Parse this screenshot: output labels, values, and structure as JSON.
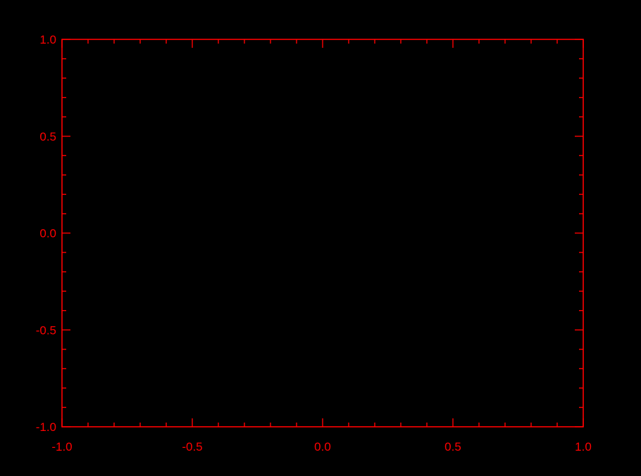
{
  "chart_data": {
    "type": "line",
    "title": "",
    "xlabel": "",
    "ylabel": "",
    "xlim": [
      -1.0,
      1.0
    ],
    "ylim": [
      -1.0,
      1.0
    ],
    "x_ticks": [
      -1.0,
      -0.5,
      0.0,
      0.5,
      1.0
    ],
    "x_tick_labels": [
      "-1.0",
      "-0.5",
      "0.0",
      "0.5",
      "1.0"
    ],
    "y_ticks": [
      -1.0,
      -0.5,
      0.0,
      0.5,
      1.0
    ],
    "y_tick_labels": [
      "-1.0",
      "-0.5",
      "0.0",
      "0.5",
      "1.0"
    ],
    "x_minor_step": 0.1,
    "y_minor_step": 0.1,
    "series": [],
    "grid": false,
    "legend": "none",
    "colors": {
      "axis": "#ff0000",
      "background": "#000000"
    }
  }
}
